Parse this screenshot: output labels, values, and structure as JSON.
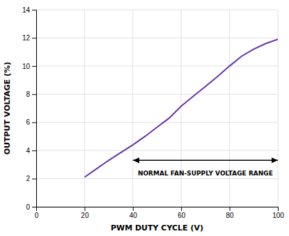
{
  "chart_data": {
    "type": "line",
    "xlabel": "PWM DUTY CYCLE (V)",
    "ylabel": "OUTPUT VOLTAGE (%)",
    "x": [
      20,
      25,
      30,
      35,
      40,
      45,
      50,
      55,
      60,
      65,
      70,
      75,
      80,
      85,
      90,
      95,
      100
    ],
    "values": [
      2.1,
      2.7,
      3.3,
      3.85,
      4.4,
      5.0,
      5.65,
      6.3,
      7.15,
      7.85,
      8.55,
      9.25,
      10.0,
      10.7,
      11.2,
      11.6,
      11.9
    ],
    "color": "#6633AA",
    "xlim": [
      0,
      100
    ],
    "ylim": [
      0,
      14
    ],
    "xticks": [
      0,
      20,
      40,
      60,
      80,
      100
    ],
    "yticks": [
      0,
      2,
      4,
      6,
      8,
      10,
      12,
      14
    ],
    "grid": true,
    "annotations": [
      {
        "text": "NORMAL FAN-SUPPLY VOLTAGE RANGE",
        "x": 70,
        "y": 2.55,
        "arrow": {
          "x": [
            40,
            100
          ],
          "y": 3.3
        }
      }
    ]
  }
}
